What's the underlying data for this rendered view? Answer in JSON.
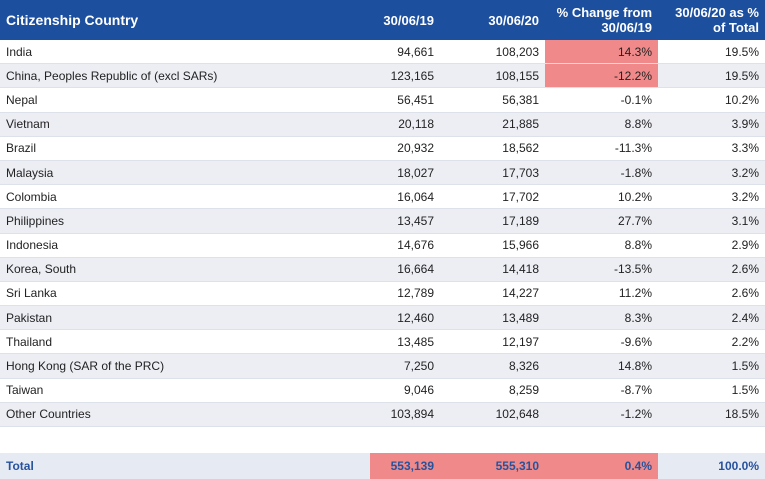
{
  "table": {
    "header": [
      "Citizenship Country",
      "30/06/19",
      "30/06/20",
      "% Change from 30/06/19",
      "30/06/20 as % of Total"
    ],
    "rows": [
      [
        "India",
        "94,661",
        "108,203",
        "14.3%",
        "19.5%"
      ],
      [
        "China, Peoples Republic of (excl SARs)",
        "123,165",
        "108,155",
        "-12.2%",
        "19.5%"
      ],
      [
        "Nepal",
        "56,451",
        "56,381",
        "-0.1%",
        "10.2%"
      ],
      [
        "Vietnam",
        "20,118",
        "21,885",
        "8.8%",
        "3.9%"
      ],
      [
        "Brazil",
        "20,932",
        "18,562",
        "-11.3%",
        "3.3%"
      ],
      [
        "Malaysia",
        "18,027",
        "17,703",
        "-1.8%",
        "3.2%"
      ],
      [
        "Colombia",
        "16,064",
        "17,702",
        "10.2%",
        "3.2%"
      ],
      [
        "Philippines",
        "13,457",
        "17,189",
        "27.7%",
        "3.1%"
      ],
      [
        "Indonesia",
        "14,676",
        "15,966",
        "8.8%",
        "2.9%"
      ],
      [
        "Korea, South",
        "16,664",
        "14,418",
        "-13.5%",
        "2.6%"
      ],
      [
        "Sri Lanka",
        "12,789",
        "14,227",
        "11.2%",
        "2.6%"
      ],
      [
        "Pakistan",
        "12,460",
        "13,489",
        "8.3%",
        "2.4%"
      ],
      [
        "Thailand",
        "13,485",
        "12,197",
        "-9.6%",
        "2.2%"
      ],
      [
        "Hong Kong (SAR of the PRC)",
        "7,250",
        "8,326",
        "14.8%",
        "1.5%"
      ],
      [
        "Taiwan",
        "9,046",
        "8,259",
        "-8.7%",
        "1.5%"
      ],
      [
        "Other Countries",
        "103,894",
        "102,648",
        "-1.2%",
        "18.5%"
      ]
    ],
    "total": [
      "Total",
      "553,139",
      "555,310",
      "0.4%",
      "100.0%"
    ]
  }
}
